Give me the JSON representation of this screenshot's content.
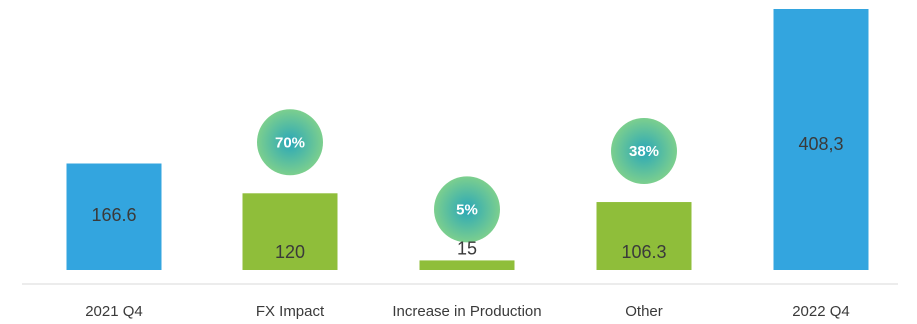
{
  "chart_data": {
    "type": "bar",
    "variant": "bridge",
    "categories": [
      "2021 Q4",
      "FX Impact",
      "Increase in Production",
      "Other",
      "2022 Q4"
    ],
    "values": [
      166.6,
      120,
      15,
      106.3,
      408.3
    ],
    "value_labels": [
      "166.6",
      "120",
      "15",
      "106.3",
      "408,3"
    ],
    "kinds": [
      "total",
      "change",
      "change",
      "change",
      "total"
    ],
    "share_badges": [
      {
        "category": "FX Impact",
        "label": "70%"
      },
      {
        "category": "Increase in Production",
        "label": "5%"
      },
      {
        "category": "Other",
        "label": "38%"
      }
    ],
    "title": "",
    "xlabel": "",
    "ylabel": "",
    "grid": false,
    "legend": "none",
    "colors": {
      "total": "#33a5df",
      "change": "#8fbe3a",
      "badge_outer": "#7ccf8e",
      "badge_inner": "#2aa7b8",
      "badge_text": "#ffffff",
      "label_text": "#3a3a3a",
      "axis": "#d9d9d9"
    }
  }
}
